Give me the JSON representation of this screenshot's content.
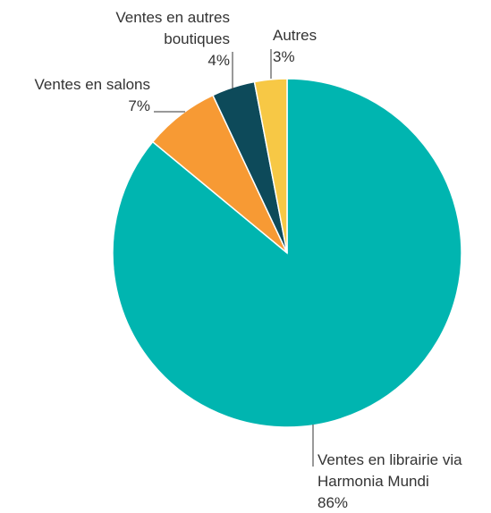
{
  "chart_data": {
    "type": "pie",
    "categories": [
      "Ventes en librairie via Harmonia Mundi",
      "Ventes en salons",
      "Ventes en autres boutiques",
      "Autres"
    ],
    "values": [
      86,
      7,
      4,
      3
    ],
    "value_labels": [
      "86%",
      "7%",
      "4%",
      "3%"
    ],
    "colors": [
      "#00b5b0",
      "#f79a34",
      "#0d4a5a",
      "#f7c845"
    ]
  }
}
